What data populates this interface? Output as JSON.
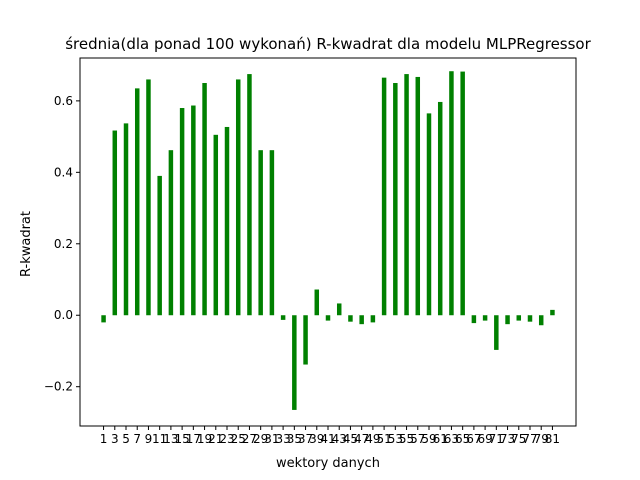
{
  "chart_data": {
    "type": "bar",
    "title": "średnia(dla ponad 100 wykonań) R-kwadrat dla modelu MLPRegressor",
    "xlabel": "wektory danych",
    "ylabel": "R-kwadrat",
    "x": [
      1,
      3,
      5,
      7,
      9,
      11,
      13,
      15,
      17,
      19,
      21,
      23,
      25,
      27,
      29,
      31,
      33,
      35,
      37,
      39,
      41,
      43,
      45,
      47,
      49,
      51,
      53,
      55,
      57,
      59,
      61,
      63,
      65,
      67,
      69,
      71,
      73,
      75,
      77,
      79,
      81
    ],
    "values": [
      -0.02,
      0.517,
      0.537,
      0.635,
      0.66,
      0.39,
      0.462,
      0.58,
      0.587,
      0.65,
      0.505,
      0.527,
      0.66,
      0.675,
      0.462,
      0.462,
      -0.013,
      -0.265,
      -0.138,
      0.072,
      -0.015,
      0.033,
      -0.018,
      -0.025,
      -0.02,
      0.665,
      0.65,
      0.675,
      0.667,
      0.565,
      0.597,
      0.683,
      0.682,
      -0.022,
      -0.015,
      -0.097,
      -0.025,
      -0.015,
      -0.018,
      -0.028,
      0.015
    ],
    "x_ticks": [
      "1",
      "3",
      "5",
      "7",
      "9",
      "11",
      "13",
      "15",
      "17",
      "19",
      "21",
      "23",
      "25",
      "27",
      "29",
      "31",
      "33",
      "35",
      "37",
      "39",
      "41",
      "43",
      "45",
      "47",
      "49",
      "51",
      "53",
      "55",
      "57",
      "59",
      "61",
      "63",
      "65",
      "67",
      "69",
      "71",
      "73",
      "75",
      "77",
      "79",
      "81"
    ],
    "y_ticks": [
      "−0.2",
      "0.0",
      "0.2",
      "0.4",
      "0.6"
    ],
    "y_tick_values": [
      -0.2,
      0.0,
      0.2,
      0.4,
      0.6
    ],
    "ylim": [
      -0.31,
      0.72
    ],
    "xlim": [
      -3.2,
      85.2
    ],
    "bar_color": "#008000",
    "grid": false,
    "legend": "none"
  }
}
